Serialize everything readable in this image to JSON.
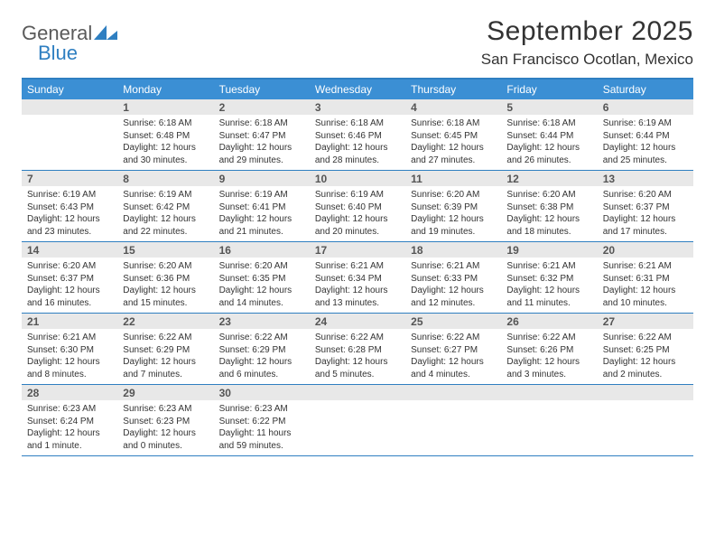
{
  "logo": {
    "line1": "General",
    "line2": "Blue",
    "mark_fill": "#2f7fc1"
  },
  "title": "September 2025",
  "location": "San Francisco Ocotlan, Mexico",
  "colors": {
    "header_band": "#3b8fd4",
    "rule": "#2f7fc1",
    "daynum_bg": "#e8e8e8",
    "text": "#333333",
    "daynum_text": "#555555",
    "dow_text": "#ffffff"
  },
  "days_of_week": [
    "Sunday",
    "Monday",
    "Tuesday",
    "Wednesday",
    "Thursday",
    "Friday",
    "Saturday"
  ],
  "weeks": [
    [
      {
        "n": "",
        "sunrise": "",
        "sunset": "",
        "daylight": ""
      },
      {
        "n": "1",
        "sunrise": "Sunrise: 6:18 AM",
        "sunset": "Sunset: 6:48 PM",
        "daylight": "Daylight: 12 hours and 30 minutes."
      },
      {
        "n": "2",
        "sunrise": "Sunrise: 6:18 AM",
        "sunset": "Sunset: 6:47 PM",
        "daylight": "Daylight: 12 hours and 29 minutes."
      },
      {
        "n": "3",
        "sunrise": "Sunrise: 6:18 AM",
        "sunset": "Sunset: 6:46 PM",
        "daylight": "Daylight: 12 hours and 28 minutes."
      },
      {
        "n": "4",
        "sunrise": "Sunrise: 6:18 AM",
        "sunset": "Sunset: 6:45 PM",
        "daylight": "Daylight: 12 hours and 27 minutes."
      },
      {
        "n": "5",
        "sunrise": "Sunrise: 6:18 AM",
        "sunset": "Sunset: 6:44 PM",
        "daylight": "Daylight: 12 hours and 26 minutes."
      },
      {
        "n": "6",
        "sunrise": "Sunrise: 6:19 AM",
        "sunset": "Sunset: 6:44 PM",
        "daylight": "Daylight: 12 hours and 25 minutes."
      }
    ],
    [
      {
        "n": "7",
        "sunrise": "Sunrise: 6:19 AM",
        "sunset": "Sunset: 6:43 PM",
        "daylight": "Daylight: 12 hours and 23 minutes."
      },
      {
        "n": "8",
        "sunrise": "Sunrise: 6:19 AM",
        "sunset": "Sunset: 6:42 PM",
        "daylight": "Daylight: 12 hours and 22 minutes."
      },
      {
        "n": "9",
        "sunrise": "Sunrise: 6:19 AM",
        "sunset": "Sunset: 6:41 PM",
        "daylight": "Daylight: 12 hours and 21 minutes."
      },
      {
        "n": "10",
        "sunrise": "Sunrise: 6:19 AM",
        "sunset": "Sunset: 6:40 PM",
        "daylight": "Daylight: 12 hours and 20 minutes."
      },
      {
        "n": "11",
        "sunrise": "Sunrise: 6:20 AM",
        "sunset": "Sunset: 6:39 PM",
        "daylight": "Daylight: 12 hours and 19 minutes."
      },
      {
        "n": "12",
        "sunrise": "Sunrise: 6:20 AM",
        "sunset": "Sunset: 6:38 PM",
        "daylight": "Daylight: 12 hours and 18 minutes."
      },
      {
        "n": "13",
        "sunrise": "Sunrise: 6:20 AM",
        "sunset": "Sunset: 6:37 PM",
        "daylight": "Daylight: 12 hours and 17 minutes."
      }
    ],
    [
      {
        "n": "14",
        "sunrise": "Sunrise: 6:20 AM",
        "sunset": "Sunset: 6:37 PM",
        "daylight": "Daylight: 12 hours and 16 minutes."
      },
      {
        "n": "15",
        "sunrise": "Sunrise: 6:20 AM",
        "sunset": "Sunset: 6:36 PM",
        "daylight": "Daylight: 12 hours and 15 minutes."
      },
      {
        "n": "16",
        "sunrise": "Sunrise: 6:20 AM",
        "sunset": "Sunset: 6:35 PM",
        "daylight": "Daylight: 12 hours and 14 minutes."
      },
      {
        "n": "17",
        "sunrise": "Sunrise: 6:21 AM",
        "sunset": "Sunset: 6:34 PM",
        "daylight": "Daylight: 12 hours and 13 minutes."
      },
      {
        "n": "18",
        "sunrise": "Sunrise: 6:21 AM",
        "sunset": "Sunset: 6:33 PM",
        "daylight": "Daylight: 12 hours and 12 minutes."
      },
      {
        "n": "19",
        "sunrise": "Sunrise: 6:21 AM",
        "sunset": "Sunset: 6:32 PM",
        "daylight": "Daylight: 12 hours and 11 minutes."
      },
      {
        "n": "20",
        "sunrise": "Sunrise: 6:21 AM",
        "sunset": "Sunset: 6:31 PM",
        "daylight": "Daylight: 12 hours and 10 minutes."
      }
    ],
    [
      {
        "n": "21",
        "sunrise": "Sunrise: 6:21 AM",
        "sunset": "Sunset: 6:30 PM",
        "daylight": "Daylight: 12 hours and 8 minutes."
      },
      {
        "n": "22",
        "sunrise": "Sunrise: 6:22 AM",
        "sunset": "Sunset: 6:29 PM",
        "daylight": "Daylight: 12 hours and 7 minutes."
      },
      {
        "n": "23",
        "sunrise": "Sunrise: 6:22 AM",
        "sunset": "Sunset: 6:29 PM",
        "daylight": "Daylight: 12 hours and 6 minutes."
      },
      {
        "n": "24",
        "sunrise": "Sunrise: 6:22 AM",
        "sunset": "Sunset: 6:28 PM",
        "daylight": "Daylight: 12 hours and 5 minutes."
      },
      {
        "n": "25",
        "sunrise": "Sunrise: 6:22 AM",
        "sunset": "Sunset: 6:27 PM",
        "daylight": "Daylight: 12 hours and 4 minutes."
      },
      {
        "n": "26",
        "sunrise": "Sunrise: 6:22 AM",
        "sunset": "Sunset: 6:26 PM",
        "daylight": "Daylight: 12 hours and 3 minutes."
      },
      {
        "n": "27",
        "sunrise": "Sunrise: 6:22 AM",
        "sunset": "Sunset: 6:25 PM",
        "daylight": "Daylight: 12 hours and 2 minutes."
      }
    ],
    [
      {
        "n": "28",
        "sunrise": "Sunrise: 6:23 AM",
        "sunset": "Sunset: 6:24 PM",
        "daylight": "Daylight: 12 hours and 1 minute."
      },
      {
        "n": "29",
        "sunrise": "Sunrise: 6:23 AM",
        "sunset": "Sunset: 6:23 PM",
        "daylight": "Daylight: 12 hours and 0 minutes."
      },
      {
        "n": "30",
        "sunrise": "Sunrise: 6:23 AM",
        "sunset": "Sunset: 6:22 PM",
        "daylight": "Daylight: 11 hours and 59 minutes."
      },
      {
        "n": "",
        "sunrise": "",
        "sunset": "",
        "daylight": ""
      },
      {
        "n": "",
        "sunrise": "",
        "sunset": "",
        "daylight": ""
      },
      {
        "n": "",
        "sunrise": "",
        "sunset": "",
        "daylight": ""
      },
      {
        "n": "",
        "sunrise": "",
        "sunset": "",
        "daylight": ""
      }
    ]
  ]
}
